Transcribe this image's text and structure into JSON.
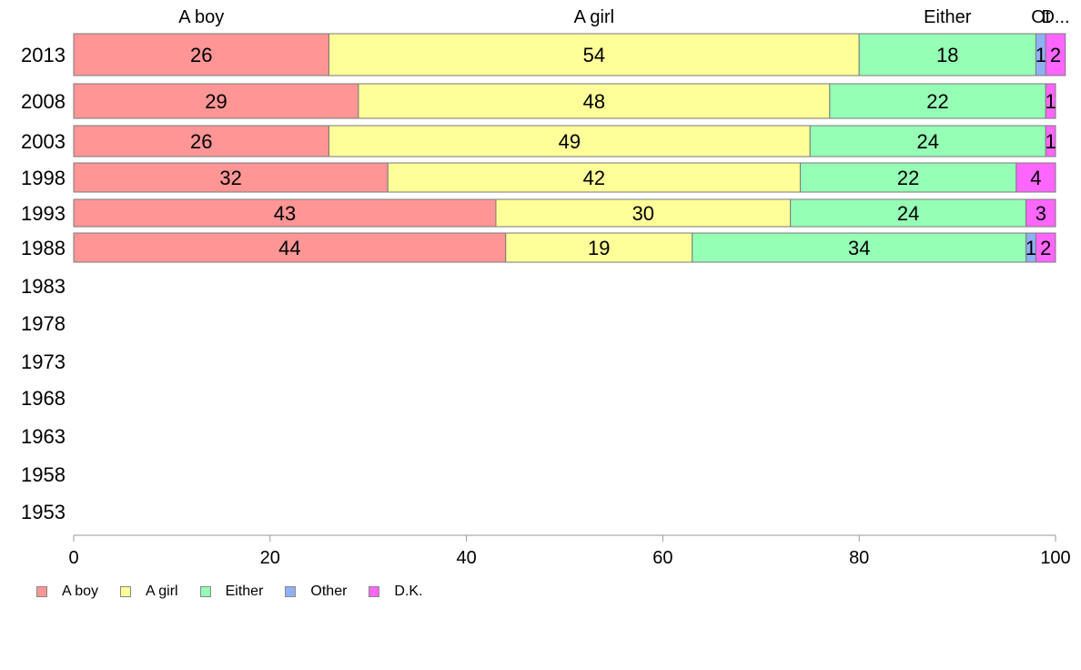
{
  "chart_data": {
    "type": "bar",
    "orientation": "horizontal",
    "stacked": true,
    "title": "",
    "xlabel": "",
    "ylabel": "",
    "xlim": [
      0,
      100
    ],
    "xticks": [
      "0",
      "20",
      "40",
      "60",
      "80",
      "100"
    ],
    "categories": [
      "2013",
      "2008",
      "2003",
      "1998",
      "1993",
      "1988",
      "1983",
      "1978",
      "1973",
      "1968",
      "1963",
      "1958",
      "1953"
    ],
    "series": [
      {
        "name": "A boy",
        "color": "#ff9595",
        "values": [
          26,
          29,
          26,
          32,
          43,
          44,
          null,
          null,
          null,
          null,
          null,
          null,
          null
        ]
      },
      {
        "name": "A girl",
        "color": "#ffff99",
        "values": [
          54,
          48,
          49,
          42,
          30,
          19,
          null,
          null,
          null,
          null,
          null,
          null,
          null
        ]
      },
      {
        "name": "Either",
        "color": "#95ffb6",
        "values": [
          18,
          22,
          24,
          22,
          24,
          34,
          null,
          null,
          null,
          null,
          null,
          null,
          null
        ]
      },
      {
        "name": "Other",
        "color": "#90b0f5",
        "values": [
          1,
          0,
          0,
          0,
          0,
          1,
          null,
          null,
          null,
          null,
          null,
          null,
          null
        ]
      },
      {
        "name": "D.K.",
        "color": "#ff66ff",
        "values": [
          2,
          1,
          1,
          4,
          3,
          2,
          null,
          null,
          null,
          null,
          null,
          null,
          null
        ]
      }
    ],
    "top_labels": [
      "A boy",
      "A girl",
      "Either",
      "Ot",
      "D..."
    ],
    "legend_position": "bottom-left",
    "grid": false
  },
  "legend": [
    {
      "label": "A boy",
      "color": "#ff9595"
    },
    {
      "label": "A girl",
      "color": "#ffff99"
    },
    {
      "label": "Either",
      "color": "#95ffb6"
    },
    {
      "label": "Other",
      "color": "#90b0f5"
    },
    {
      "label": "D.K.",
      "color": "#ff66ff"
    }
  ]
}
